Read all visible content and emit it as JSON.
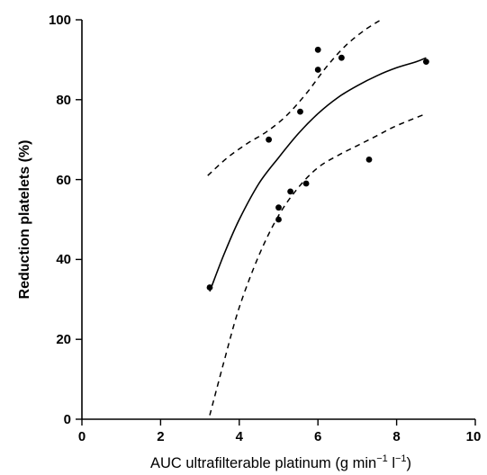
{
  "chart_data": {
    "type": "scatter",
    "xlabel": "AUC  ultrafilterable  platinum  (g min",
    "xlabel_unit_sup1": "−1",
    "xlabel_unit_mid": " l",
    "xlabel_unit_sup2": "−1",
    "xlabel_unit_end": ")",
    "ylabel": "Reduction platelets (%)",
    "xlim": [
      0,
      10
    ],
    "ylim": [
      0,
      100
    ],
    "x_ticks": [
      "0",
      "2",
      "4",
      "6",
      "8",
      "10"
    ],
    "y_ticks": [
      "0",
      "20",
      "40",
      "60",
      "80",
      "100"
    ],
    "grid": false,
    "points": [
      {
        "x": 3.25,
        "y": 33
      },
      {
        "x": 4.75,
        "y": 70
      },
      {
        "x": 5.0,
        "y": 53
      },
      {
        "x": 5.0,
        "y": 50
      },
      {
        "x": 5.3,
        "y": 57
      },
      {
        "x": 5.55,
        "y": 77
      },
      {
        "x": 5.7,
        "y": 59
      },
      {
        "x": 6.0,
        "y": 92.5
      },
      {
        "x": 6.0,
        "y": 87.5
      },
      {
        "x": 6.6,
        "y": 90.5
      },
      {
        "x": 7.3,
        "y": 65
      },
      {
        "x": 8.75,
        "y": 89.5
      }
    ],
    "series": [
      {
        "style": "solid",
        "x": [
          3.25,
          3.6,
          4.0,
          4.5,
          5.0,
          5.5,
          6.0,
          6.5,
          7.0,
          7.5,
          8.0,
          8.5,
          8.75
        ],
        "y": [
          32,
          41,
          50,
          59,
          65.5,
          71.5,
          76.5,
          80.5,
          83.5,
          86,
          88,
          89.5,
          90.5
        ]
      },
      {
        "style": "dashed-upper",
        "x": [
          3.2,
          3.7,
          4.2,
          4.7,
          5.2,
          5.7,
          6.2,
          6.7,
          7.2,
          7.6
        ],
        "y": [
          61,
          65.5,
          69,
          72,
          76,
          81.5,
          88,
          93.5,
          97.5,
          100
        ]
      },
      {
        "style": "dashed-lower",
        "x": [
          3.25,
          3.6,
          4.0,
          4.5,
          5.0,
          5.5,
          6.0,
          6.5,
          7.0,
          7.5,
          8.0,
          8.75
        ],
        "y": [
          1,
          14,
          28,
          41,
          51,
          58,
          63,
          66,
          68.5,
          71,
          73.5,
          76.5
        ]
      }
    ]
  }
}
